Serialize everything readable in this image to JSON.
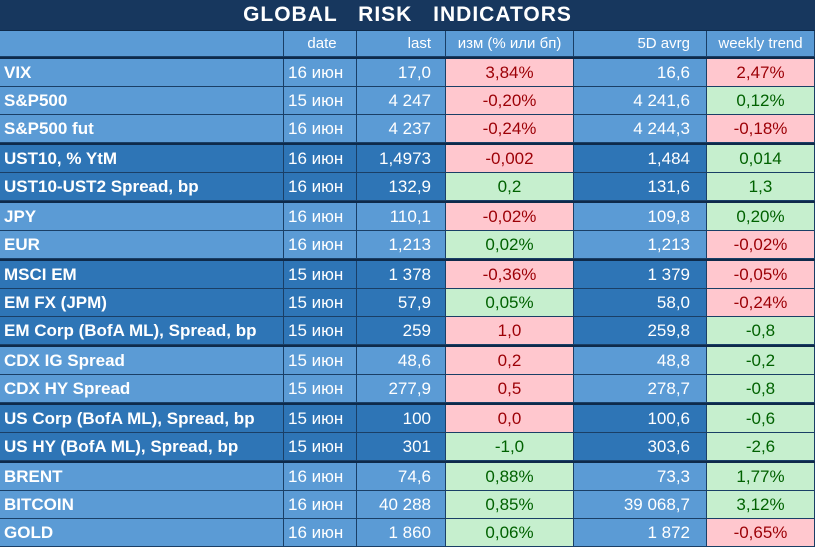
{
  "title": "GLOBAL RISK INDICATORS",
  "headers": {
    "name": "",
    "date": "date",
    "last": "last",
    "chg": "изм (% или бп)",
    "avg": "5D avrg",
    "wk": "weekly trend"
  },
  "rows": [
    {
      "name": "VIX",
      "date": "16 июн",
      "last": "17,0",
      "chg": "3,84%",
      "avg": "16,6",
      "wk": "2,47%",
      "chgDir": "neg",
      "wkDir": "neg",
      "shade": "light",
      "avgShade": "light",
      "sep": true
    },
    {
      "name": "S&P500",
      "date": "15 июн",
      "last": "4 247",
      "chg": "-0,20%",
      "avg": "4 241,6",
      "wk": "0,12%",
      "chgDir": "neg",
      "wkDir": "pos",
      "shade": "light",
      "avgShade": "light"
    },
    {
      "name": "S&P500 fut",
      "date": "16 июн",
      "last": "4 237",
      "chg": "-0,24%",
      "avg": "4 244,3",
      "wk": "-0,18%",
      "chgDir": "neg",
      "wkDir": "neg",
      "shade": "light",
      "avgShade": "light"
    },
    {
      "name": "UST10, % YtM",
      "date": "16 июн",
      "last": "1,4973",
      "chg": "-0,002",
      "avg": "1,484",
      "wk": "0,014",
      "chgDir": "neg",
      "wkDir": "pos",
      "shade": "dark",
      "avgShade": "dark",
      "sep": true
    },
    {
      "name": "UST10-UST2 Spread, bp",
      "date": "16 июн",
      "last": "132,9",
      "chg": "0,2",
      "avg": "131,6",
      "wk": "1,3",
      "chgDir": "pos",
      "wkDir": "pos",
      "shade": "dark",
      "avgShade": "dark"
    },
    {
      "name": "JPY",
      "date": "16 июн",
      "last": "110,1",
      "chg": "-0,02%",
      "avg": "109,8",
      "wk": "0,20%",
      "chgDir": "neg",
      "wkDir": "pos",
      "shade": "light",
      "avgShade": "light",
      "sep": true
    },
    {
      "name": "EUR",
      "date": "16 июн",
      "last": "1,213",
      "chg": "0,02%",
      "avg": "1,213",
      "wk": "-0,02%",
      "chgDir": "pos",
      "wkDir": "neg",
      "shade": "light",
      "avgShade": "light"
    },
    {
      "name": "MSCI EM",
      "date": "15 июн",
      "last": "1 378",
      "chg": "-0,36%",
      "avg": "1 379",
      "wk": "-0,05%",
      "chgDir": "neg",
      "wkDir": "neg",
      "shade": "dark",
      "avgShade": "dark",
      "sep": true
    },
    {
      "name": "EM FX (JPM)",
      "date": "15 июн",
      "last": "57,9",
      "chg": "0,05%",
      "avg": "58,0",
      "wk": "-0,24%",
      "chgDir": "pos",
      "wkDir": "neg",
      "shade": "dark",
      "avgShade": "dark"
    },
    {
      "name": "EM Corp (BofA ML), Spread, bp",
      "date": "15 июн",
      "last": "259",
      "chg": "1,0",
      "avg": "259,8",
      "wk": "-0,8",
      "chgDir": "neg",
      "wkDir": "pos",
      "shade": "dark",
      "avgShade": "dark"
    },
    {
      "name": "CDX IG Spread",
      "date": "15 июн",
      "last": "48,6",
      "chg": "0,2",
      "avg": "48,8",
      "wk": "-0,2",
      "chgDir": "neg",
      "wkDir": "pos",
      "shade": "light",
      "avgShade": "light",
      "sep": true
    },
    {
      "name": "CDX HY Spread",
      "date": "15 июн",
      "last": "277,9",
      "chg": "0,5",
      "avg": "278,7",
      "wk": "-0,8",
      "chgDir": "neg",
      "wkDir": "pos",
      "shade": "light",
      "avgShade": "light"
    },
    {
      "name": "US Corp (BofA ML), Spread, bp",
      "date": "15 июн",
      "last": "100",
      "chg": "0,0",
      "avg": "100,6",
      "wk": "-0,6",
      "chgDir": "neg",
      "wkDir": "pos",
      "shade": "dark",
      "avgShade": "dark",
      "sep": true
    },
    {
      "name": "US HY (BofA ML), Spread, bp",
      "date": "15 июн",
      "last": "301",
      "chg": "-1,0",
      "avg": "303,6",
      "wk": "-2,6",
      "chgDir": "pos",
      "wkDir": "pos",
      "shade": "dark",
      "avgShade": "dark"
    },
    {
      "name": "BRENT",
      "date": "16 июн",
      "last": "74,6",
      "chg": "0,88%",
      "avg": "73,3",
      "wk": "1,77%",
      "chgDir": "pos",
      "wkDir": "pos",
      "shade": "light",
      "avgShade": "light",
      "sep": true
    },
    {
      "name": "BITCOIN",
      "date": "16 июн",
      "last": "40 288",
      "chg": "0,85%",
      "avg": "39 068,7",
      "wk": "3,12%",
      "chgDir": "pos",
      "wkDir": "pos",
      "shade": "light",
      "avgShade": "light"
    },
    {
      "name": "GOLD",
      "date": "16 июн",
      "last": "1 860",
      "chg": "0,06%",
      "avg": "1 872",
      "wk": "-0,65%",
      "chgDir": "pos",
      "wkDir": "neg",
      "shade": "light",
      "avgShade": "light"
    }
  ]
}
